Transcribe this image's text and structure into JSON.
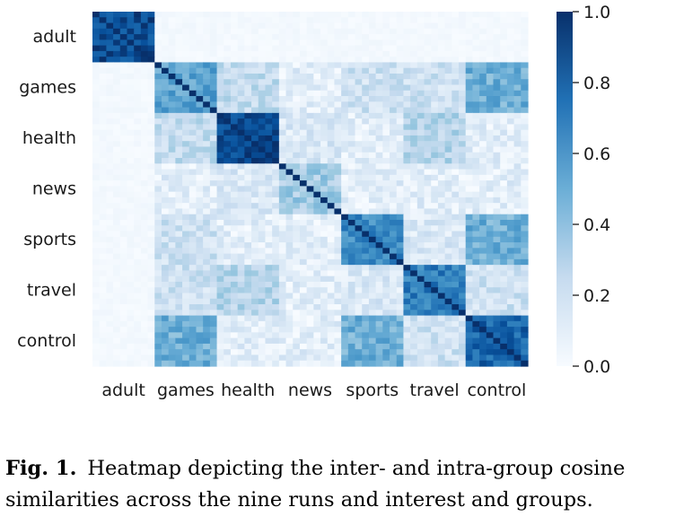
{
  "chart_data": {
    "type": "heatmap",
    "title": "",
    "xlabel": "",
    "ylabel": "",
    "categories": [
      "adult",
      "games",
      "health",
      "news",
      "sports",
      "travel",
      "control"
    ],
    "runs_per_group": 9,
    "within_group_similarity": [
      0.9,
      0.55,
      0.9,
      0.35,
      0.65,
      0.7,
      0.8
    ],
    "between_group_similarity": [
      [
        0.9,
        0.02,
        0.02,
        0.02,
        0.02,
        0.02,
        0.02
      ],
      [
        0.02,
        0.55,
        0.25,
        0.1,
        0.2,
        0.2,
        0.5
      ],
      [
        0.02,
        0.25,
        0.9,
        0.15,
        0.1,
        0.3,
        0.1
      ],
      [
        0.02,
        0.1,
        0.15,
        0.35,
        0.1,
        0.1,
        0.1
      ],
      [
        0.02,
        0.2,
        0.1,
        0.1,
        0.65,
        0.15,
        0.5
      ],
      [
        0.02,
        0.2,
        0.3,
        0.1,
        0.15,
        0.7,
        0.2
      ],
      [
        0.02,
        0.5,
        0.1,
        0.1,
        0.5,
        0.2,
        0.8
      ]
    ],
    "diagonal": 1.0,
    "colorbar": {
      "ticks": [
        "0.0",
        "0.2",
        "0.4",
        "0.6",
        "0.8",
        "1.0"
      ],
      "range": [
        0.0,
        1.0
      ],
      "colormap": "Blues",
      "color_low": "#f7fbff",
      "color_high": "#08306b"
    }
  },
  "caption": {
    "label": "Fig. 1.",
    "text": "Heatmap depicting the inter- and intra-group cosine similarities across the nine runs and interest and groups."
  }
}
